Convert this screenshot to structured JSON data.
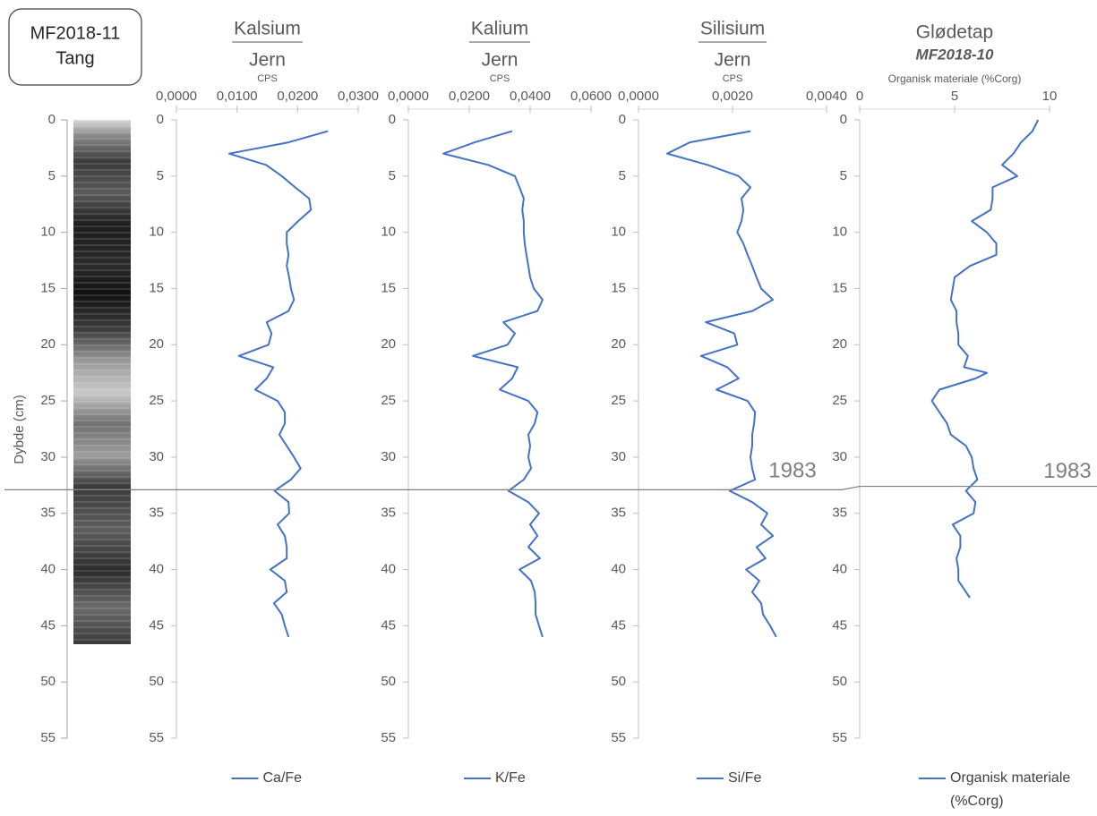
{
  "header": {
    "core_id": "MF2018-11",
    "core_name": "Tang"
  },
  "depth_axis": {
    "label": "Dybde (cm)",
    "ylim": [
      0,
      55
    ],
    "yticks": [
      0,
      5,
      10,
      15,
      20,
      25,
      30,
      35,
      40,
      45,
      50,
      55
    ]
  },
  "marker": {
    "label": "1983",
    "depth_xrf": 32.9,
    "depth_loi": 32.6
  },
  "chart_data": [
    {
      "type": "line",
      "title": "Kalsium",
      "title_denominator": "Jern",
      "xlabel": "CPS",
      "xlim": [
        0,
        0.03
      ],
      "xticks": [
        {
          "value": 0,
          "label": "0,0000"
        },
        {
          "value": 0.01,
          "label": "0,0100"
        },
        {
          "value": 0.02,
          "label": "0,0200"
        },
        {
          "value": 0.03,
          "label": "0,0300"
        }
      ],
      "ylim": [
        0,
        55
      ],
      "yticks": [
        0,
        5,
        10,
        15,
        20,
        25,
        30,
        35,
        40,
        45,
        50,
        55
      ],
      "series": [
        {
          "name": "Ca/Fe",
          "color": "#4472c4",
          "values": [
            0.025,
            0.0185,
            0.0087,
            0.0148,
            0.0174,
            0.0196,
            0.0219,
            0.0222,
            0.0201,
            0.0182,
            0.0182,
            0.0185,
            0.0182,
            0.0186,
            0.0189,
            0.0194,
            0.0185,
            0.0149,
            0.0157,
            0.0152,
            0.0103,
            0.016,
            0.0149,
            0.013,
            0.0167,
            0.0179,
            0.0179,
            0.017,
            0.0182,
            0.0194,
            0.0205,
            0.0189,
            0.0162,
            0.0185,
            0.0186,
            0.0167,
            0.0179,
            0.0182,
            0.0182,
            0.0155,
            0.0179,
            0.0182,
            0.0161,
            0.0174,
            0.0179,
            0.0185
          ],
          "y": [
            1,
            2,
            3,
            4,
            5,
            6,
            7,
            8,
            9,
            10,
            11,
            12,
            13,
            14,
            15,
            16,
            17,
            18,
            19,
            20,
            21,
            22,
            23,
            24,
            25,
            26,
            27,
            28,
            29,
            30,
            31,
            32,
            33,
            34,
            35,
            36,
            37,
            38,
            39,
            40,
            41,
            42,
            43,
            44,
            45,
            46
          ]
        }
      ]
    },
    {
      "type": "line",
      "title": "Kalium",
      "title_denominator": "Jern",
      "xlabel": "CPS",
      "xlim": [
        0,
        0.06
      ],
      "xticks": [
        {
          "value": 0,
          "label": "0,0000"
        },
        {
          "value": 0.02,
          "label": "0,0200"
        },
        {
          "value": 0.04,
          "label": "0,0400"
        },
        {
          "value": 0.06,
          "label": "0,0600"
        }
      ],
      "ylim": [
        0,
        55
      ],
      "yticks": [
        0,
        5,
        10,
        15,
        20,
        25,
        30,
        35,
        40,
        45,
        50,
        55
      ],
      "series": [
        {
          "name": "K/Fe",
          "color": "#4472c4",
          "values": [
            0.0341,
            0.0218,
            0.0115,
            0.0262,
            0.035,
            0.0365,
            0.0379,
            0.0374,
            0.0379,
            0.0379,
            0.0382,
            0.0388,
            0.0394,
            0.04,
            0.0412,
            0.0441,
            0.0424,
            0.0312,
            0.035,
            0.0326,
            0.0212,
            0.0359,
            0.0341,
            0.03,
            0.0394,
            0.0424,
            0.0415,
            0.0394,
            0.04,
            0.0394,
            0.0403,
            0.0379,
            0.0329,
            0.0394,
            0.0429,
            0.04,
            0.0424,
            0.0394,
            0.0432,
            0.0365,
            0.0403,
            0.0415,
            0.0418,
            0.0418,
            0.0429,
            0.0441
          ],
          "y": [
            1,
            2,
            3,
            4,
            5,
            6,
            7,
            8,
            9,
            10,
            11,
            12,
            13,
            14,
            15,
            16,
            17,
            18,
            19,
            20,
            21,
            22,
            23,
            24,
            25,
            26,
            27,
            28,
            29,
            30,
            31,
            32,
            33,
            34,
            35,
            36,
            37,
            38,
            39,
            40,
            41,
            42,
            43,
            44,
            45,
            46
          ]
        }
      ]
    },
    {
      "type": "line",
      "title": "Silisium",
      "title_denominator": "Jern",
      "xlabel": "CPS",
      "xlim": [
        0,
        0.004
      ],
      "xticks": [
        {
          "value": 0,
          "label": "0,0000"
        },
        {
          "value": 0.002,
          "label": "0,0020"
        },
        {
          "value": 0.004,
          "label": "0,0040"
        }
      ],
      "ylim": [
        0,
        55
      ],
      "yticks": [
        0,
        5,
        10,
        15,
        20,
        25,
        30,
        35,
        40,
        45,
        50,
        55
      ],
      "series": [
        {
          "name": "Si/Fe",
          "color": "#4472c4",
          "values": [
            0.00238,
            0.00109,
            0.00061,
            0.00147,
            0.00213,
            0.00238,
            0.00219,
            0.00223,
            0.00219,
            0.0021,
            0.00223,
            0.00232,
            0.00242,
            0.00251,
            0.00261,
            0.00286,
            0.00242,
            0.00143,
            0.00204,
            0.0021,
            0.00133,
            0.00189,
            0.00213,
            0.00166,
            0.00232,
            0.00248,
            0.00246,
            0.00242,
            0.00242,
            0.00238,
            0.00242,
            0.00248,
            0.00194,
            0.00242,
            0.00274,
            0.00261,
            0.00286,
            0.00251,
            0.0027,
            0.00229,
            0.00257,
            0.00242,
            0.00261,
            0.00265,
            0.0028,
            0.00293
          ],
          "y": [
            1,
            2,
            3,
            4,
            5,
            6,
            7,
            8,
            9,
            10,
            11,
            12,
            13,
            14,
            15,
            16,
            17,
            18,
            19,
            20,
            21,
            22,
            23,
            24,
            25,
            26,
            27,
            28,
            29,
            30,
            31,
            32,
            33,
            34,
            35,
            36,
            37,
            38,
            39,
            40,
            41,
            42,
            43,
            44,
            45,
            46
          ]
        }
      ]
    },
    {
      "type": "line",
      "title": "Glødetap",
      "subtitle": "MF2018-10",
      "xlabel": "Organisk materiale (%Corg)",
      "xlim": [
        0,
        10
      ],
      "xticks": [
        0,
        5,
        10
      ],
      "ylim": [
        0,
        55
      ],
      "yticks": [
        0,
        5,
        10,
        15,
        20,
        25,
        30,
        35,
        40,
        45,
        50,
        55
      ],
      "series": [
        {
          "name": "Organisk materiale (%Corg)",
          "color": "#4472c4",
          "values": [
            9.4,
            9.1,
            8.5,
            8.1,
            7.5,
            8.3,
            7.0,
            7.0,
            6.9,
            5.9,
            6.7,
            7.2,
            7.2,
            5.8,
            5.0,
            4.9,
            4.8,
            5.1,
            5.1,
            5.2,
            5.2,
            5.7,
            5.5,
            6.7,
            6.1,
            4.2,
            3.8,
            4.2,
            4.6,
            4.8,
            5.6,
            5.9,
            6.0,
            6.2,
            5.6,
            6.1,
            6.0,
            4.9,
            5.3,
            5.3,
            5.1,
            5.2,
            5.2,
            5.6,
            5.8
          ],
          "y": [
            0,
            1,
            2,
            3,
            4,
            5,
            6,
            7,
            8,
            9,
            10,
            11,
            12,
            13,
            14,
            15,
            16,
            17,
            18,
            19,
            20,
            21,
            22,
            22.5,
            23,
            24,
            25,
            26,
            27,
            28,
            29,
            30,
            31,
            32,
            33,
            34,
            35,
            36,
            37,
            38,
            39,
            40,
            41,
            42,
            42.5
          ]
        }
      ]
    }
  ]
}
